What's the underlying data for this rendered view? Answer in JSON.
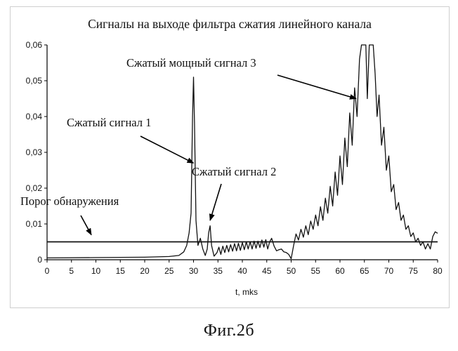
{
  "figure_caption": "Фиг.2б",
  "chart_data": {
    "type": "line",
    "title": "Сигналы на выходе фильтра сжатия линейного канала",
    "xlabel": "t, mks",
    "ylabel": "",
    "xlim": [
      0,
      80
    ],
    "ylim": [
      0,
      0.06
    ],
    "x_ticks": [
      "0",
      "5",
      "10",
      "15",
      "20",
      "25",
      "30",
      "35",
      "40",
      "45",
      "50",
      "55",
      "60",
      "65",
      "70",
      "75",
      "80"
    ],
    "y_ticks": [
      "0",
      "0,01",
      "0,02",
      "0,03",
      "0,04",
      "0,05",
      "0,06"
    ],
    "grid": false,
    "threshold": {
      "label": "Порог обнаружения",
      "value": 0.005
    },
    "annotations": [
      {
        "text": "Сжатый сигнал 1",
        "target_x": 30,
        "target_y": 0.027
      },
      {
        "text": "Сжатый сигнал 2",
        "target_x": 33.4,
        "target_y": 0.011
      },
      {
        "text": "Сжатый мощный сигнал 3",
        "target_x": 63.3,
        "target_y": 0.045
      }
    ],
    "series": [
      {
        "points": [
          [
            0,
            0.0005
          ],
          [
            10,
            0.0006
          ],
          [
            20,
            0.0007
          ],
          [
            25,
            0.0009
          ],
          [
            27,
            0.0012
          ],
          [
            28,
            0.0022
          ],
          [
            28.6,
            0.004
          ],
          [
            29.1,
            0.0075
          ],
          [
            29.5,
            0.013
          ],
          [
            29.8,
            0.04
          ],
          [
            30,
            0.051
          ],
          [
            30.2,
            0.038
          ],
          [
            30.5,
            0.011
          ],
          [
            30.9,
            0.004
          ],
          [
            31.4,
            0.006
          ],
          [
            31.9,
            0.003
          ],
          [
            32.4,
            0.0012
          ],
          [
            32.8,
            0.003
          ],
          [
            33.1,
            0.0075
          ],
          [
            33.4,
            0.0095
          ],
          [
            33.7,
            0.004
          ],
          [
            34.2,
            0.001
          ],
          [
            34.8,
            0.002
          ],
          [
            35.2,
            0.0035
          ],
          [
            35.6,
            0.0015
          ],
          [
            36,
            0.0038
          ],
          [
            36.4,
            0.002
          ],
          [
            36.8,
            0.004
          ],
          [
            37.2,
            0.0022
          ],
          [
            37.6,
            0.0042
          ],
          [
            38,
            0.0024
          ],
          [
            38.4,
            0.0045
          ],
          [
            38.8,
            0.0025
          ],
          [
            39.2,
            0.0046
          ],
          [
            39.6,
            0.0026
          ],
          [
            40,
            0.0048
          ],
          [
            40.4,
            0.0028
          ],
          [
            40.8,
            0.005
          ],
          [
            41.2,
            0.003
          ],
          [
            41.6,
            0.005
          ],
          [
            42,
            0.003
          ],
          [
            42.4,
            0.0052
          ],
          [
            42.8,
            0.0032
          ],
          [
            43.2,
            0.0052
          ],
          [
            43.6,
            0.0034
          ],
          [
            44,
            0.0055
          ],
          [
            44.4,
            0.0035
          ],
          [
            44.8,
            0.0056
          ],
          [
            45.2,
            0.003
          ],
          [
            45.6,
            0.005
          ],
          [
            46,
            0.006
          ],
          [
            46.5,
            0.0038
          ],
          [
            47,
            0.0025
          ],
          [
            47.5,
            0.0028
          ],
          [
            48,
            0.003
          ],
          [
            48.5,
            0.0022
          ],
          [
            49,
            0.002
          ],
          [
            49.5,
            0.0015
          ],
          [
            50,
            0.0003
          ],
          [
            50.5,
            0.004
          ],
          [
            51,
            0.0072
          ],
          [
            51.5,
            0.0055
          ],
          [
            52,
            0.0085
          ],
          [
            52.5,
            0.0063
          ],
          [
            53,
            0.0095
          ],
          [
            53.5,
            0.007
          ],
          [
            54,
            0.0108
          ],
          [
            54.5,
            0.0085
          ],
          [
            55,
            0.0125
          ],
          [
            55.5,
            0.0095
          ],
          [
            56,
            0.0148
          ],
          [
            56.5,
            0.011
          ],
          [
            57,
            0.0172
          ],
          [
            57.5,
            0.013
          ],
          [
            58,
            0.0205
          ],
          [
            58.5,
            0.015
          ],
          [
            59,
            0.0245
          ],
          [
            59.5,
            0.018
          ],
          [
            60,
            0.029
          ],
          [
            60.5,
            0.021
          ],
          [
            61,
            0.034
          ],
          [
            61.5,
            0.026
          ],
          [
            62,
            0.041
          ],
          [
            62.5,
            0.032
          ],
          [
            63,
            0.048
          ],
          [
            63.5,
            0.04
          ],
          [
            64,
            0.056
          ],
          [
            64.4,
            0.06
          ],
          [
            65.3,
            0.06
          ],
          [
            65.6,
            0.045
          ],
          [
            66,
            0.06
          ],
          [
            66.8,
            0.06
          ],
          [
            67.2,
            0.052
          ],
          [
            67.6,
            0.04
          ],
          [
            68,
            0.046
          ],
          [
            68.5,
            0.032
          ],
          [
            69,
            0.037
          ],
          [
            69.5,
            0.025
          ],
          [
            70,
            0.029
          ],
          [
            70.5,
            0.019
          ],
          [
            71,
            0.021
          ],
          [
            71.5,
            0.014
          ],
          [
            72,
            0.016
          ],
          [
            72.5,
            0.011
          ],
          [
            73,
            0.0125
          ],
          [
            73.5,
            0.0085
          ],
          [
            74,
            0.0095
          ],
          [
            74.5,
            0.0065
          ],
          [
            75,
            0.0075
          ],
          [
            75.5,
            0.005
          ],
          [
            76,
            0.006
          ],
          [
            76.5,
            0.004
          ],
          [
            77,
            0.005
          ],
          [
            77.5,
            0.003
          ],
          [
            78,
            0.0045
          ],
          [
            78.5,
            0.003
          ],
          [
            79,
            0.0065
          ],
          [
            79.5,
            0.0078
          ],
          [
            80,
            0.0074
          ]
        ]
      }
    ]
  }
}
